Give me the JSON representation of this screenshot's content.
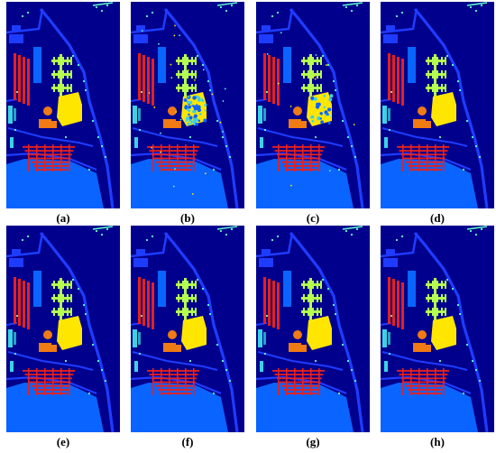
{
  "panels": [
    {
      "id": "a",
      "caption": "(a)",
      "variant": "gt"
    },
    {
      "id": "b",
      "caption": "(b)",
      "variant": "noisy"
    },
    {
      "id": "c",
      "caption": "(c)",
      "variant": "medium"
    },
    {
      "id": "d",
      "caption": "(d)",
      "variant": "clean"
    },
    {
      "id": "e",
      "caption": "(e)",
      "variant": "clean"
    },
    {
      "id": "f",
      "caption": "(f)",
      "variant": "clean"
    },
    {
      "id": "g",
      "caption": "(g)",
      "variant": "clean"
    },
    {
      "id": "h",
      "caption": "(h)",
      "variant": "clean"
    }
  ],
  "colors": {
    "background": "#00008c",
    "road": "#1e3cff",
    "meadow": "#0a64ff",
    "red": "#e8201c",
    "orange": "#f07a14",
    "yellow": "#ffe600",
    "lime": "#b4ff50",
    "cyan": "#3cd2e6",
    "teal": "#28a0c8",
    "aqua": "#64ffc8"
  }
}
